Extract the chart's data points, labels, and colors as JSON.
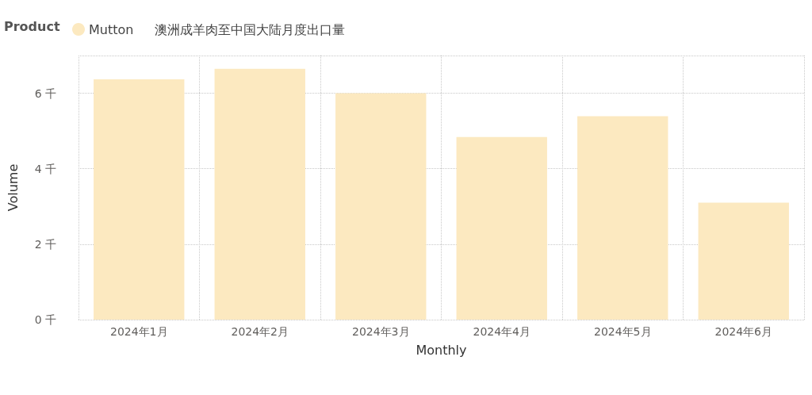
{
  "chart_data": {
    "type": "bar",
    "title": "澳洲成羊肉至中国大陆月度出口量",
    "legend_title": "Product",
    "xlabel": "Monthly",
    "ylabel": "Volume",
    "categories": [
      "2024年1月",
      "2024年2月",
      "2024年3月",
      "2024年4月",
      "2024年5月",
      "2024年6月"
    ],
    "series": [
      {
        "name": "Mutton",
        "color": "#fce9c0",
        "values": [
          6.37,
          6.65,
          6.0,
          4.84,
          5.39,
          3.1
        ]
      }
    ],
    "ylim": [
      0,
      7
    ],
    "yticks": [
      {
        "value": 0,
        "label": "0 千"
      },
      {
        "value": 2,
        "label": "2 千"
      },
      {
        "value": 4,
        "label": "4 千"
      },
      {
        "value": 6,
        "label": "6 千"
      }
    ],
    "grid": true,
    "legend": "top left"
  }
}
